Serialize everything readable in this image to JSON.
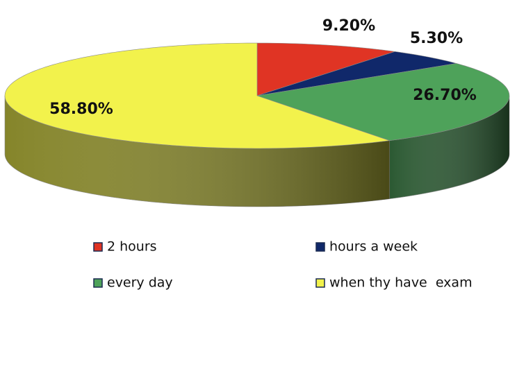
{
  "chart_data": {
    "type": "pie3d",
    "categories": [
      "2 hours",
      "hours a week",
      "every day",
      "when thy have  exam"
    ],
    "values": [
      9.2,
      5.3,
      26.7,
      58.8
    ],
    "value_labels": [
      "9.20%",
      "5.30%",
      "26.70%",
      "58.80%"
    ],
    "colors": [
      "#e03424",
      "#10286a",
      "#4ea25a",
      "#f2f24c"
    ],
    "legend": "bottom"
  }
}
